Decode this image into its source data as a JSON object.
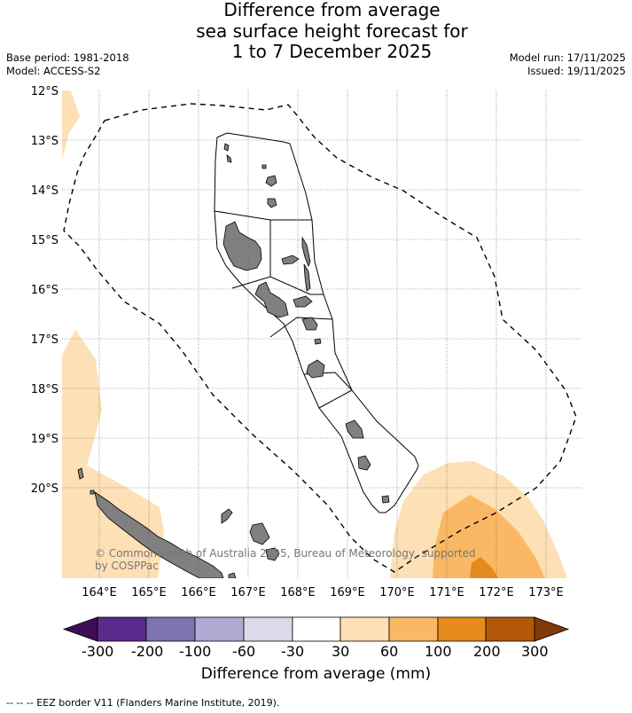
{
  "title": {
    "line1": "Difference from average",
    "line2": "sea surface height forecast for",
    "line3": "1 to 7 December 2025"
  },
  "meta": {
    "base_period": "Base period: 1981-2018",
    "model": "Model: ACCESS-S2",
    "model_run": "Model run: 17/11/2025",
    "issued": "Issued: 19/11/2025"
  },
  "map": {
    "lat_labels": [
      "12°S",
      "13°S",
      "14°S",
      "15°S",
      "16°S",
      "17°S",
      "18°S",
      "19°S",
      "20°S"
    ],
    "lon_labels": [
      "164°E",
      "165°E",
      "166°E",
      "167°E",
      "168°E",
      "169°E",
      "170°E",
      "171°E",
      "172°E",
      "173°E"
    ],
    "copyright": "© Commonwealth of Australia 2025, Bureau of Meteorology, supported by COSPPac",
    "colors": {
      "land": "#808080",
      "level_30_60": "#fde0b5",
      "level_60_100": "#fbb864",
      "level_100_200": "#e68a1e"
    }
  },
  "colorbar": {
    "tick_labels": [
      "-300",
      "-200",
      "-100",
      "-60",
      "-30",
      "30",
      "60",
      "100",
      "200",
      "300"
    ],
    "title": "Difference from average (mm)",
    "colors": [
      "#3f0d56",
      "#5b2a8c",
      "#7f72b0",
      "#b0a9d2",
      "#dadaea",
      "#ffffff",
      "#fde0b5",
      "#fbb864",
      "#e68a1e",
      "#b35806",
      "#7f3b08"
    ]
  },
  "footer": {
    "legend": "-- -- -- EEZ border V11 (Flanders Marine Institute, 2019)."
  }
}
